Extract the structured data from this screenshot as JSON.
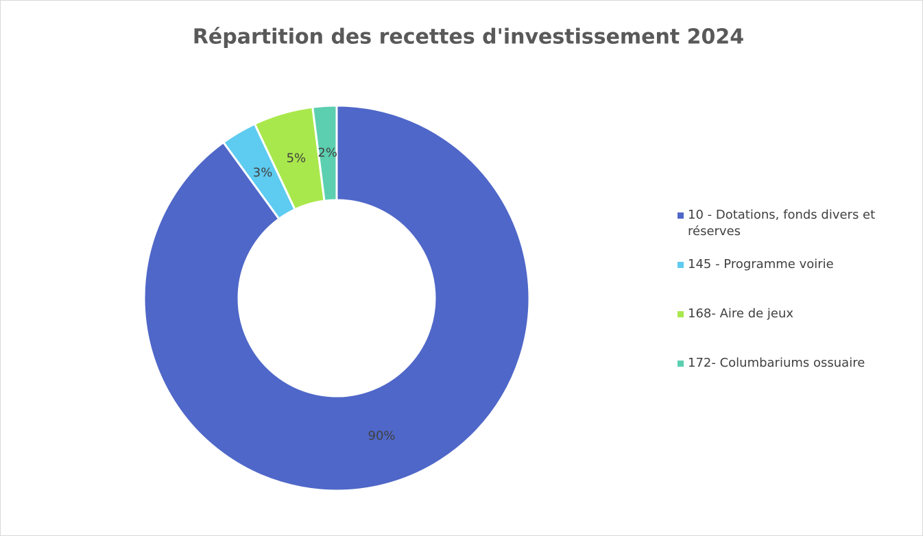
{
  "chart_data": {
    "type": "donut",
    "title": "Répartition des recettes d'investissement 2024",
    "categories": [
      "10 - Dotations, fonds divers et réserves",
      "145 - Programme voirie",
      "168- Aire de jeux",
      "172- Columbariums ossuaire"
    ],
    "values": [
      90,
      3,
      5,
      2
    ],
    "value_labels": [
      "90%",
      "3%",
      "5%",
      "2%"
    ],
    "colors": [
      "#4f67c8",
      "#5ecbf0",
      "#a9e84c",
      "#5ccfb0"
    ],
    "legend": "right"
  }
}
